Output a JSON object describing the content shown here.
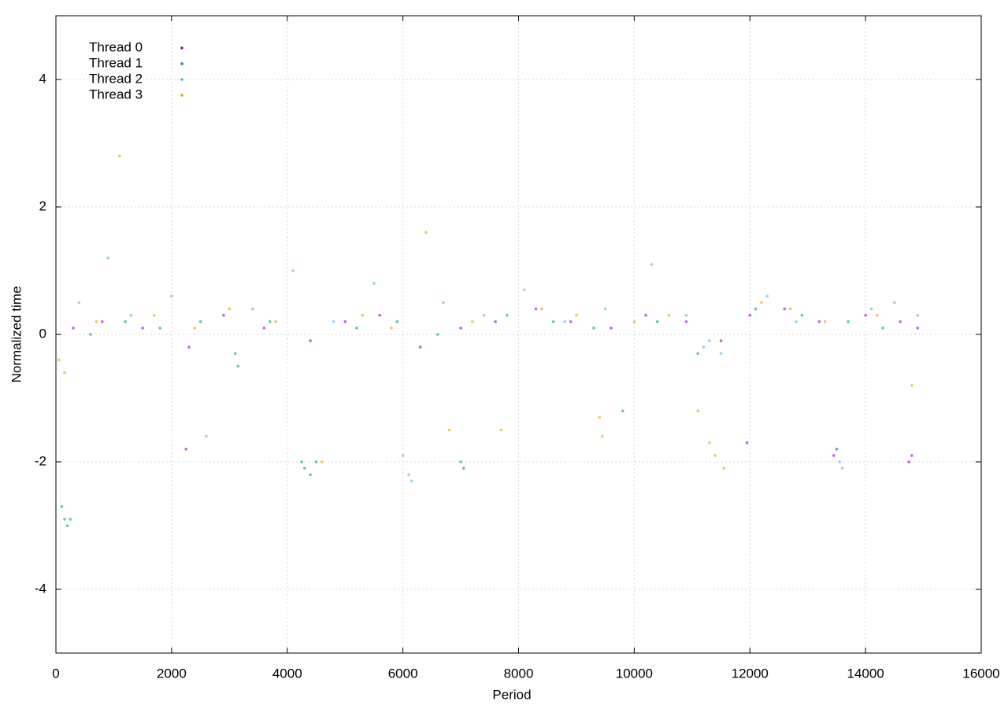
{
  "chart_data": {
    "type": "scatter",
    "x_label": "Period",
    "y_label": "Normalized time",
    "xlim": [
      0,
      16000
    ],
    "ylim": [
      -5,
      5
    ],
    "xticks": [
      0,
      2000,
      4000,
      6000,
      8000,
      10000,
      12000,
      14000,
      16000
    ],
    "yticks": [
      -4,
      -2,
      0,
      2,
      4
    ],
    "grid": true,
    "legend": "upper-left",
    "series": [
      {
        "name": "Thread 0",
        "color": "#9400d3",
        "x": [
          300,
          800,
          1500,
          2250,
          2300,
          2900,
          3600,
          4400,
          5000,
          5600,
          6300,
          7000,
          7600,
          8300,
          8900,
          9600,
          10200,
          10900,
          11500,
          11950,
          12000,
          12600,
          13200,
          13450,
          13500,
          14000,
          14600,
          14750,
          14800,
          14900
        ],
        "values": [
          0.1,
          0.2,
          0.1,
          -1.8,
          -0.2,
          0.3,
          0.1,
          -0.1,
          0.2,
          0.3,
          -0.2,
          0.1,
          0.2,
          0.4,
          0.2,
          0.1,
          0.3,
          0.2,
          -0.1,
          -1.7,
          0.3,
          0.4,
          0.2,
          -1.9,
          -1.8,
          0.3,
          0.2,
          -2.0,
          -1.9,
          0.1
        ]
      },
      {
        "name": "Thread 1",
        "color": "#009e73",
        "x": [
          100,
          150,
          200,
          250,
          600,
          1200,
          1800,
          2500,
          3100,
          3150,
          3700,
          4250,
          4300,
          4400,
          4500,
          5200,
          5900,
          6600,
          7000,
          7050,
          7800,
          8600,
          9300,
          9800,
          10400,
          11100,
          12100,
          12900,
          13700,
          14300
        ],
        "values": [
          -2.7,
          -2.9,
          -3.0,
          -2.9,
          0.0,
          0.2,
          0.1,
          0.2,
          -0.3,
          -0.5,
          0.2,
          -2.0,
          -2.1,
          -2.2,
          -2.0,
          0.1,
          0.2,
          0.0,
          -2.0,
          -2.1,
          0.3,
          0.2,
          0.1,
          -1.2,
          0.2,
          -0.3,
          0.4,
          0.3,
          0.2,
          0.1
        ]
      },
      {
        "name": "Thread 2",
        "color": "#56b4e9",
        "x": [
          400,
          900,
          1300,
          2000,
          2600,
          3400,
          4100,
          4800,
          5500,
          6000,
          6100,
          6150,
          6700,
          7400,
          8100,
          8800,
          9500,
          10300,
          10900,
          11200,
          11300,
          11500,
          12300,
          12800,
          13500,
          13550,
          13600,
          14100,
          14500,
          14900
        ],
        "values": [
          0.5,
          1.2,
          0.3,
          0.6,
          -1.6,
          0.4,
          1.0,
          0.2,
          0.8,
          -1.9,
          -2.2,
          -2.3,
          0.5,
          0.3,
          0.7,
          0.2,
          0.4,
          1.1,
          0.3,
          -0.2,
          -0.1,
          -0.3,
          0.6,
          0.2,
          -1.8,
          -2.0,
          -2.1,
          0.4,
          0.5,
          0.3
        ]
      },
      {
        "name": "Thread 3",
        "color": "#e69f00",
        "x": [
          50,
          150,
          700,
          1100,
          1700,
          2400,
          3000,
          3800,
          4600,
          5300,
          5800,
          6400,
          6800,
          7200,
          7700,
          8400,
          9000,
          9400,
          9450,
          10000,
          10600,
          11100,
          11300,
          11400,
          11550,
          12200,
          12700,
          13300,
          14200,
          14800
        ],
        "values": [
          -0.4,
          -0.6,
          0.2,
          2.8,
          0.3,
          0.1,
          0.4,
          0.2,
          -2.0,
          0.3,
          0.1,
          1.6,
          -1.5,
          0.2,
          -1.5,
          0.4,
          0.3,
          -1.3,
          -1.6,
          0.2,
          0.3,
          -1.2,
          -1.7,
          -1.9,
          -2.1,
          0.5,
          0.4,
          0.2,
          0.3,
          -0.8
        ]
      }
    ]
  }
}
